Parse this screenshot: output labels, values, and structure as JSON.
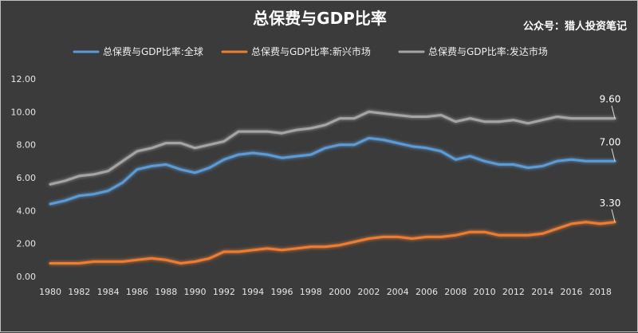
{
  "chart_data": {
    "type": "line",
    "title": "总保费与GDP比率",
    "watermark": "公众号：猎人投资笔记",
    "xlabel": "",
    "ylabel": "",
    "ylim": [
      0,
      12
    ],
    "yticks": [
      "0.00",
      "2.00",
      "4.00",
      "6.00",
      "8.00",
      "10.00",
      "12.00"
    ],
    "x": [
      1980,
      1981,
      1982,
      1983,
      1984,
      1985,
      1986,
      1987,
      1988,
      1989,
      1990,
      1991,
      1992,
      1993,
      1994,
      1995,
      1996,
      1997,
      1998,
      1999,
      2000,
      2001,
      2002,
      2003,
      2004,
      2005,
      2006,
      2007,
      2008,
      2009,
      2010,
      2011,
      2012,
      2013,
      2014,
      2015,
      2016,
      2017,
      2018,
      2019
    ],
    "xticks": [
      "1980",
      "1982",
      "1984",
      "1986",
      "1988",
      "1990",
      "1992",
      "1994",
      "1996",
      "1998",
      "2000",
      "2002",
      "2004",
      "2006",
      "2008",
      "2010",
      "2012",
      "2014",
      "2016",
      "2018"
    ],
    "series": [
      {
        "name": "总保费与GDP比率:全球",
        "color": "#5b9bd5",
        "end_label": "7.00",
        "values": [
          4.4,
          4.6,
          4.9,
          5.0,
          5.2,
          5.7,
          6.5,
          6.7,
          6.8,
          6.5,
          6.3,
          6.6,
          7.1,
          7.4,
          7.5,
          7.4,
          7.2,
          7.3,
          7.4,
          7.8,
          8.0,
          8.0,
          8.4,
          8.3,
          8.1,
          7.9,
          7.8,
          7.6,
          7.1,
          7.3,
          7.0,
          6.8,
          6.8,
          6.6,
          6.7,
          7.0,
          7.1,
          7.0,
          7.0,
          7.0
        ]
      },
      {
        "name": "总保费与GDP比率:新兴市场",
        "color": "#ed7d31",
        "end_label": "3.30",
        "values": [
          0.8,
          0.8,
          0.8,
          0.9,
          0.9,
          0.9,
          1.0,
          1.1,
          1.0,
          0.8,
          0.9,
          1.1,
          1.5,
          1.5,
          1.6,
          1.7,
          1.6,
          1.7,
          1.8,
          1.8,
          1.9,
          2.1,
          2.3,
          2.4,
          2.4,
          2.3,
          2.4,
          2.4,
          2.5,
          2.7,
          2.7,
          2.5,
          2.5,
          2.5,
          2.6,
          2.9,
          3.2,
          3.3,
          3.2,
          3.3
        ]
      },
      {
        "name": "总保费与GDP比率:发达市场",
        "color": "#a5a5a5",
        "end_label": "9.60",
        "values": [
          5.6,
          5.8,
          6.1,
          6.2,
          6.4,
          7.0,
          7.6,
          7.8,
          8.1,
          8.1,
          7.8,
          8.0,
          8.2,
          8.8,
          8.8,
          8.8,
          8.7,
          8.9,
          9.0,
          9.2,
          9.6,
          9.6,
          10.0,
          9.9,
          9.8,
          9.7,
          9.7,
          9.8,
          9.4,
          9.6,
          9.4,
          9.4,
          9.5,
          9.3,
          9.5,
          9.7,
          9.6,
          9.6,
          9.6,
          9.6
        ]
      }
    ]
  }
}
